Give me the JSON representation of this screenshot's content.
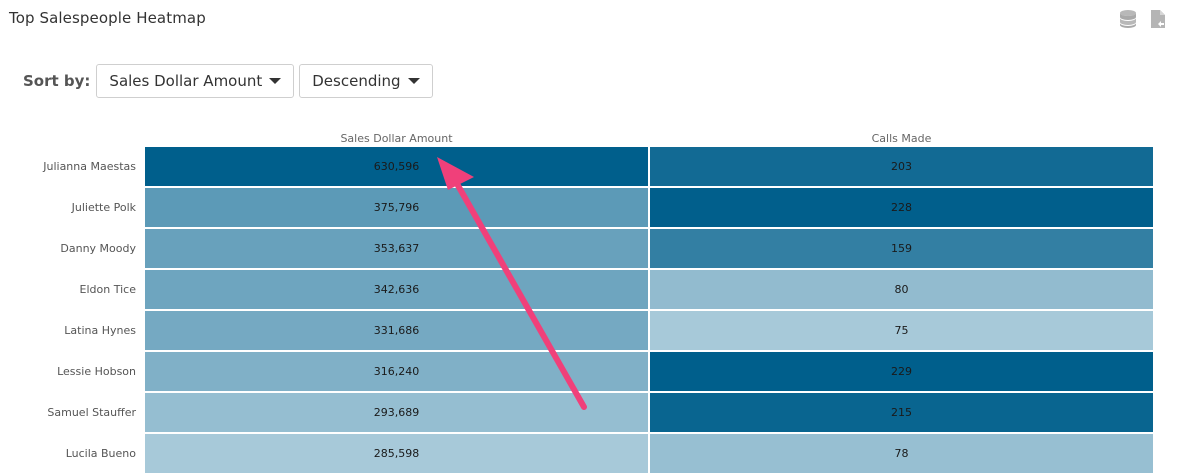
{
  "page": {
    "title": "Top Salespeople Heatmap"
  },
  "toolbar": {
    "icons": [
      "database-icon",
      "export-file-icon"
    ]
  },
  "sort": {
    "label": "Sort by:",
    "field": "Sales Dollar Amount",
    "order": "Descending"
  },
  "chart_data": {
    "type": "heatmap",
    "columns": [
      "Sales Dollar Amount",
      "Calls Made"
    ],
    "rows": [
      "Julianna Maestas",
      "Juliette Polk",
      "Danny Moody",
      "Eldon Tice",
      "Latina Hynes",
      "Lessie Hobson",
      "Samuel Stauffer",
      "Lucila Bueno"
    ],
    "values": [
      [
        630596,
        203
      ],
      [
        375796,
        228
      ],
      [
        353637,
        159
      ],
      [
        342636,
        80
      ],
      [
        331686,
        75
      ],
      [
        316240,
        229
      ],
      [
        293689,
        215
      ],
      [
        285598,
        78
      ]
    ],
    "display_values": [
      [
        "630,596",
        "203"
      ],
      [
        "375,796",
        "228"
      ],
      [
        "353,637",
        "159"
      ],
      [
        "342,636",
        "80"
      ],
      [
        "331,686",
        "75"
      ],
      [
        "316,240",
        "229"
      ],
      [
        "293,689",
        "215"
      ],
      [
        "285,598",
        "78"
      ]
    ],
    "color_scale": {
      "low": "#a7c9d9",
      "high": "#005f8c"
    },
    "legend": "none"
  },
  "annotation": {
    "type": "arrow",
    "color": "#f0407a"
  }
}
